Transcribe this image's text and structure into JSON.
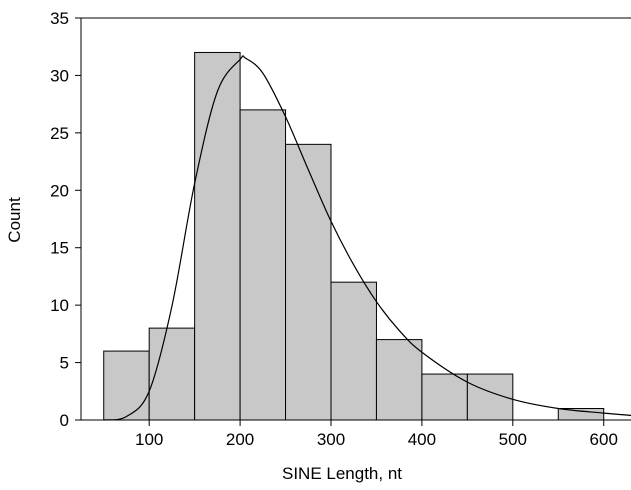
{
  "chart_data": {
    "type": "bar",
    "title": "",
    "xlabel": "SINE Length, nt",
    "ylabel": "Count",
    "xlim": [
      25,
      630
    ],
    "ylim": [
      0,
      35
    ],
    "x_ticks": [
      100,
      200,
      300,
      400,
      500,
      600
    ],
    "y_ticks": [
      0,
      5,
      10,
      15,
      20,
      25,
      30,
      35
    ],
    "bins": [
      {
        "start": 50,
        "end": 100,
        "count": 6
      },
      {
        "start": 100,
        "end": 150,
        "count": 8
      },
      {
        "start": 150,
        "end": 200,
        "count": 32
      },
      {
        "start": 200,
        "end": 250,
        "count": 27
      },
      {
        "start": 250,
        "end": 300,
        "count": 24
      },
      {
        "start": 300,
        "end": 350,
        "count": 12
      },
      {
        "start": 350,
        "end": 400,
        "count": 7
      },
      {
        "start": 400,
        "end": 450,
        "count": 4
      },
      {
        "start": 450,
        "end": 500,
        "count": 4
      },
      {
        "start": 550,
        "end": 600,
        "count": 1
      }
    ],
    "fit_curve": {
      "type": "lognormal",
      "x": [
        50,
        75,
        100,
        125,
        150,
        175,
        200,
        206,
        225,
        250,
        275,
        300,
        325,
        350,
        375,
        400,
        450,
        500,
        550,
        600,
        630
      ],
      "y": [
        0.0,
        0.3,
        2.5,
        9.9,
        20.6,
        28.6,
        31.4,
        31.5,
        30.2,
        26.4,
        21.8,
        17.3,
        13.5,
        10.3,
        7.8,
        5.9,
        3.3,
        1.8,
        1.0,
        0.6,
        0.4
      ]
    },
    "colors": {
      "bar_fill": "#c8c8c8",
      "bar_stroke": "#000000",
      "curve": "#000000",
      "axis": "#000000"
    },
    "grid": false
  }
}
